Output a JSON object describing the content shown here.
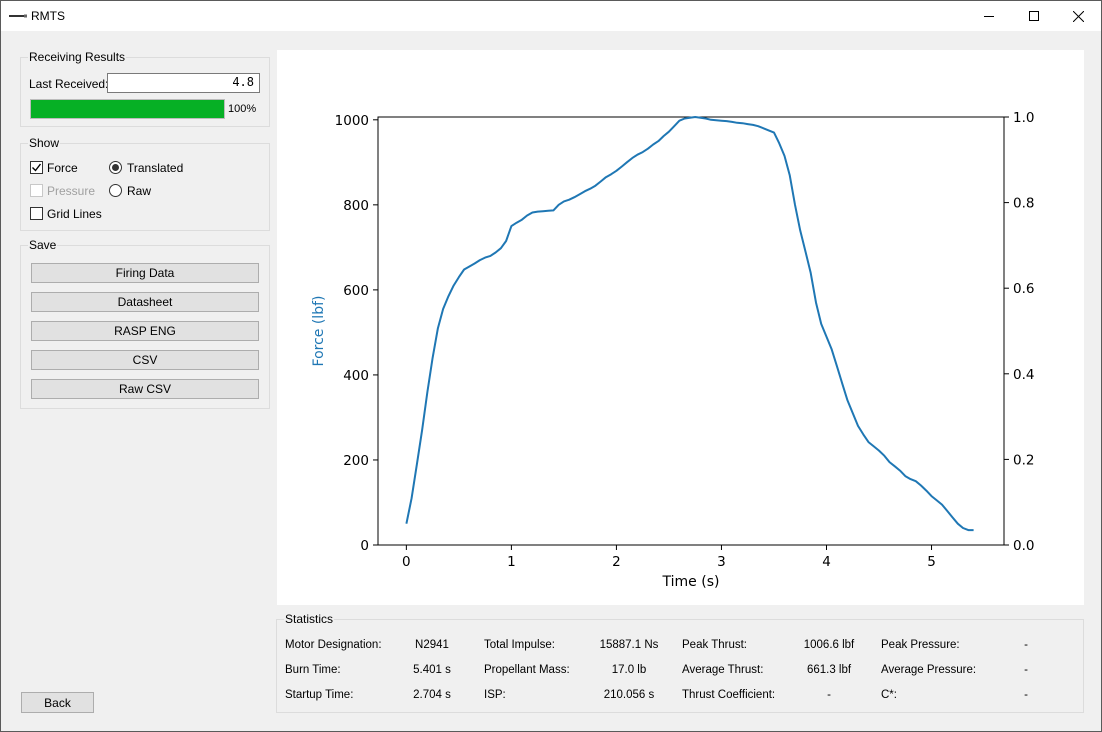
{
  "window": {
    "title": "RMTS"
  },
  "receiving": {
    "title": "Receiving Results",
    "last_received_label": "Last Received:",
    "last_received_value": "4.8",
    "progress_percent": 100,
    "progress_text": "100%"
  },
  "show": {
    "title": "Show",
    "force_label": "Force",
    "force_checked": true,
    "pressure_label": "Pressure",
    "pressure_checked": false,
    "grid_label": "Grid Lines",
    "grid_checked": false,
    "translated_label": "Translated",
    "translated_selected": true,
    "raw_label": "Raw",
    "raw_selected": false
  },
  "save": {
    "title": "Save",
    "buttons": [
      "Firing Data",
      "Datasheet",
      "RASP ENG",
      "CSV",
      "Raw CSV"
    ]
  },
  "back_label": "Back",
  "chart_data": {
    "type": "line",
    "xlabel": "Time (s)",
    "ylabel": "Force (lbf)",
    "xlim": [
      -0.27,
      5.69
    ],
    "ylim": [
      0,
      1006.6
    ],
    "y2lim": [
      0,
      1.0
    ],
    "x_ticks": [
      0,
      1,
      2,
      3,
      4,
      5
    ],
    "y_ticks": [
      0,
      200,
      400,
      600,
      800,
      1000
    ],
    "y2_ticks": [
      "0.0",
      "0.2",
      "0.4",
      "0.6",
      "0.8",
      "1.0"
    ],
    "grid": false,
    "series_color": "#1f77b4",
    "series": [
      {
        "x": [
          0.0,
          0.05,
          0.1,
          0.15,
          0.2,
          0.25,
          0.3,
          0.35,
          0.4,
          0.45,
          0.5,
          0.55,
          0.6,
          0.65,
          0.7,
          0.75,
          0.8,
          0.85,
          0.9,
          0.95,
          1.0,
          1.05,
          1.1,
          1.15,
          1.2,
          1.25,
          1.3,
          1.35,
          1.4,
          1.45,
          1.5,
          1.55,
          1.6,
          1.65,
          1.7,
          1.75,
          1.8,
          1.85,
          1.9,
          1.95,
          2.0,
          2.05,
          2.1,
          2.15,
          2.2,
          2.25,
          2.3,
          2.35,
          2.4,
          2.45,
          2.5,
          2.55,
          2.6,
          2.65,
          2.7,
          2.75,
          2.8,
          2.85,
          2.9,
          2.95,
          3.0,
          3.05,
          3.1,
          3.15,
          3.2,
          3.25,
          3.3,
          3.35,
          3.4,
          3.45,
          3.5,
          3.55,
          3.6,
          3.65,
          3.7,
          3.75,
          3.8,
          3.85,
          3.9,
          3.95,
          4.0,
          4.05,
          4.1,
          4.15,
          4.2,
          4.25,
          4.3,
          4.35,
          4.4,
          4.45,
          4.5,
          4.55,
          4.6,
          4.65,
          4.7,
          4.75,
          4.8,
          4.85,
          4.9,
          4.95,
          5.0,
          5.05,
          5.1,
          5.15,
          5.2,
          5.25,
          5.3,
          5.35,
          5.401
        ],
        "y": [
          50,
          110,
          190,
          270,
          360,
          440,
          510,
          555,
          585,
          610,
          630,
          648,
          655,
          662,
          670,
          676,
          680,
          688,
          698,
          715,
          750,
          758,
          765,
          775,
          782,
          784,
          785,
          786,
          787,
          800,
          808,
          812,
          818,
          825,
          832,
          838,
          845,
          855,
          865,
          872,
          880,
          890,
          900,
          910,
          918,
          924,
          932,
          942,
          950,
          962,
          972,
          985,
          998,
          1003,
          1005,
          1006.6,
          1005,
          1003,
          1000,
          999,
          998,
          997,
          995,
          993,
          992,
          990,
          988,
          985,
          980,
          975,
          970,
          945,
          915,
          870,
          800,
          740,
          690,
          640,
          570,
          520,
          490,
          460,
          420,
          380,
          340,
          310,
          280,
          260,
          242,
          232,
          222,
          210,
          195,
          185,
          175,
          162,
          155,
          150,
          140,
          128,
          115,
          105,
          95,
          80,
          65,
          50,
          40,
          35,
          35
        ]
      }
    ]
  },
  "statistics": {
    "title": "Statistics",
    "rows": [
      [
        {
          "label": "Motor Designation:",
          "value": "N2941"
        },
        {
          "label": "Total Impulse:",
          "value": "15887.1 Ns"
        },
        {
          "label": "Peak Thrust:",
          "value": "1006.6 lbf"
        },
        {
          "label": "Peak Pressure:",
          "value": "-"
        }
      ],
      [
        {
          "label": "Burn Time:",
          "value": "5.401 s"
        },
        {
          "label": "Propellant Mass:",
          "value": "17.0 lb"
        },
        {
          "label": "Average Thrust:",
          "value": "661.3 lbf"
        },
        {
          "label": "Average Pressure:",
          "value": "-"
        }
      ],
      [
        {
          "label": "Startup Time:",
          "value": "2.704 s"
        },
        {
          "label": "ISP:",
          "value": "210.056 s"
        },
        {
          "label": "Thrust Coefficient:",
          "value": "-"
        },
        {
          "label": "C*:",
          "value": "-"
        }
      ]
    ]
  }
}
